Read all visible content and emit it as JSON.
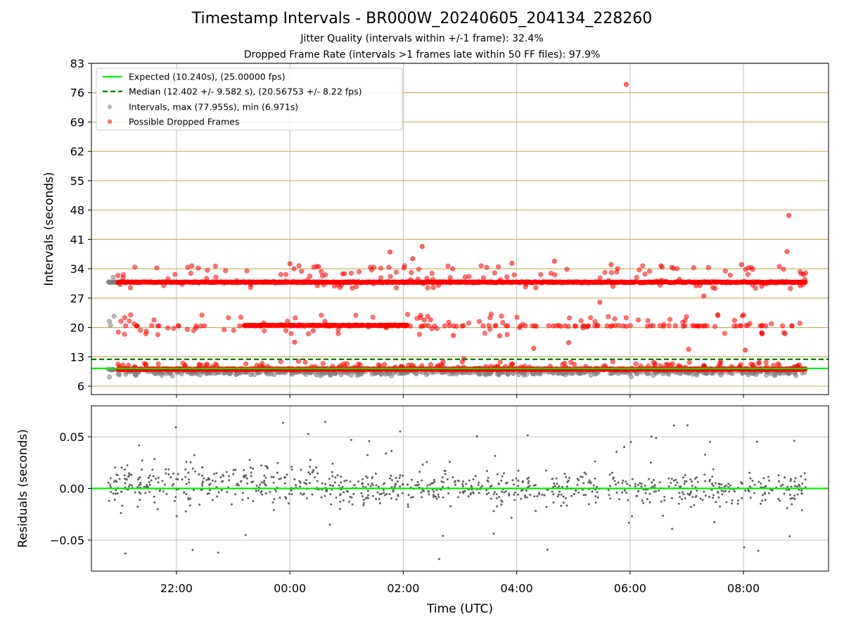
{
  "chart_data": [
    {
      "type": "scatter",
      "title": "Timestamp Intervals - BR000W_20240605_204134_228260",
      "subtitles": [
        "Jitter Quality (intervals within +/-1 frame): 32.4%",
        "Dropped Frame Rate (intervals >1 frames late within 50 FF files): 97.9%"
      ],
      "xlabel": "",
      "ylabel": "Intervals (seconds)",
      "ylim": [
        4,
        83
      ],
      "yticks": [
        "6",
        "13",
        "20",
        "27",
        "34",
        "41",
        "48",
        "55",
        "62",
        "69",
        "76",
        "83"
      ],
      "xlim": [
        "20:30",
        "09:30"
      ],
      "grid": true,
      "legend_placement": "upper-left",
      "legend": [
        "Expected (10.240s), (25.00000 fps)",
        "Median (12.402 +/- 9.582 s), (20.56753 +/- 8.22 fps)",
        "Intervals, max (77.955s), min (6.971s)",
        "Possible Dropped Frames"
      ],
      "expected_interval": 10.24,
      "median_interval": 12.402,
      "max_interval": 77.955,
      "min_interval": 6.971,
      "time_range": [
        "20:48",
        "09:06"
      ],
      "bands": [
        {
          "name": "~10s",
          "center": 10.2
        },
        {
          "name": "~20s",
          "center": 20.5
        },
        {
          "name": "~30s",
          "center": 30.8
        }
      ],
      "outliers": [
        {
          "time": "05:56",
          "value": 77.955
        },
        {
          "time": "08:48",
          "value": 46.7
        },
        {
          "time": "02:20",
          "value": 39.3
        },
        {
          "time": "08:46",
          "value": 38.1
        },
        {
          "time": "01:46",
          "value": 38.0
        },
        {
          "time": "02:10",
          "value": 36.4
        },
        {
          "time": "04:40",
          "value": 35.8
        },
        {
          "time": "00:00",
          "value": 35.2
        },
        {
          "time": "05:40",
          "value": 35.0
        },
        {
          "time": "03:55",
          "value": 35.3
        },
        {
          "time": "04:18",
          "value": 15.0
        },
        {
          "time": "05:28",
          "value": 26.0
        },
        {
          "time": "07:58",
          "value": 35.0
        },
        {
          "time": "07:18",
          "value": 27.5
        },
        {
          "time": "00:05",
          "value": 16.5
        },
        {
          "time": "02:53",
          "value": 18.1
        },
        {
          "time": "03:42",
          "value": 18.0
        },
        {
          "time": "04:55",
          "value": 16.4
        },
        {
          "time": "07:02",
          "value": 14.8
        },
        {
          "time": "08:02",
          "value": 14.6
        }
      ],
      "colors": {
        "expected": "#00ee00",
        "median": "#007f00",
        "intervals": "#808080",
        "dropped": "#ff0000",
        "grid_y": "#c8b464"
      }
    },
    {
      "type": "scatter",
      "title": "",
      "xlabel": "Time (UTC)",
      "ylabel": "Residuals (seconds)",
      "ylim": [
        -0.08,
        0.08
      ],
      "yticks": [
        "−0.05",
        "0.00",
        "0.05"
      ],
      "xticks": [
        "22:00",
        "00:00",
        "02:00",
        "04:00",
        "06:00",
        "08:00"
      ],
      "xlim": [
        "20:30",
        "09:30"
      ],
      "grid": true,
      "residual_range": [
        -0.075,
        0.071
      ],
      "zero_line": 0.0,
      "colors": {
        "zero": "#00ee00",
        "points": "#606060"
      }
    }
  ]
}
